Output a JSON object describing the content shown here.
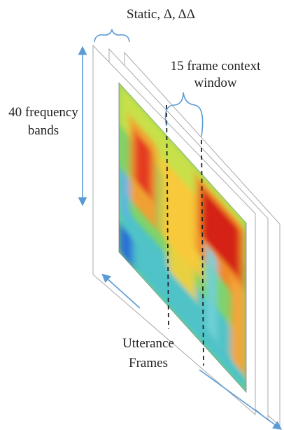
{
  "features": {
    "label": "Static, Δ, ΔΔ"
  },
  "context_window": {
    "lines": [
      "15 frame context",
      "window"
    ]
  },
  "frequency_axis": {
    "lines": [
      "40 frequency",
      "bands"
    ]
  },
  "time_axis": {
    "lines": [
      "Utterance",
      "Frames"
    ]
  }
}
